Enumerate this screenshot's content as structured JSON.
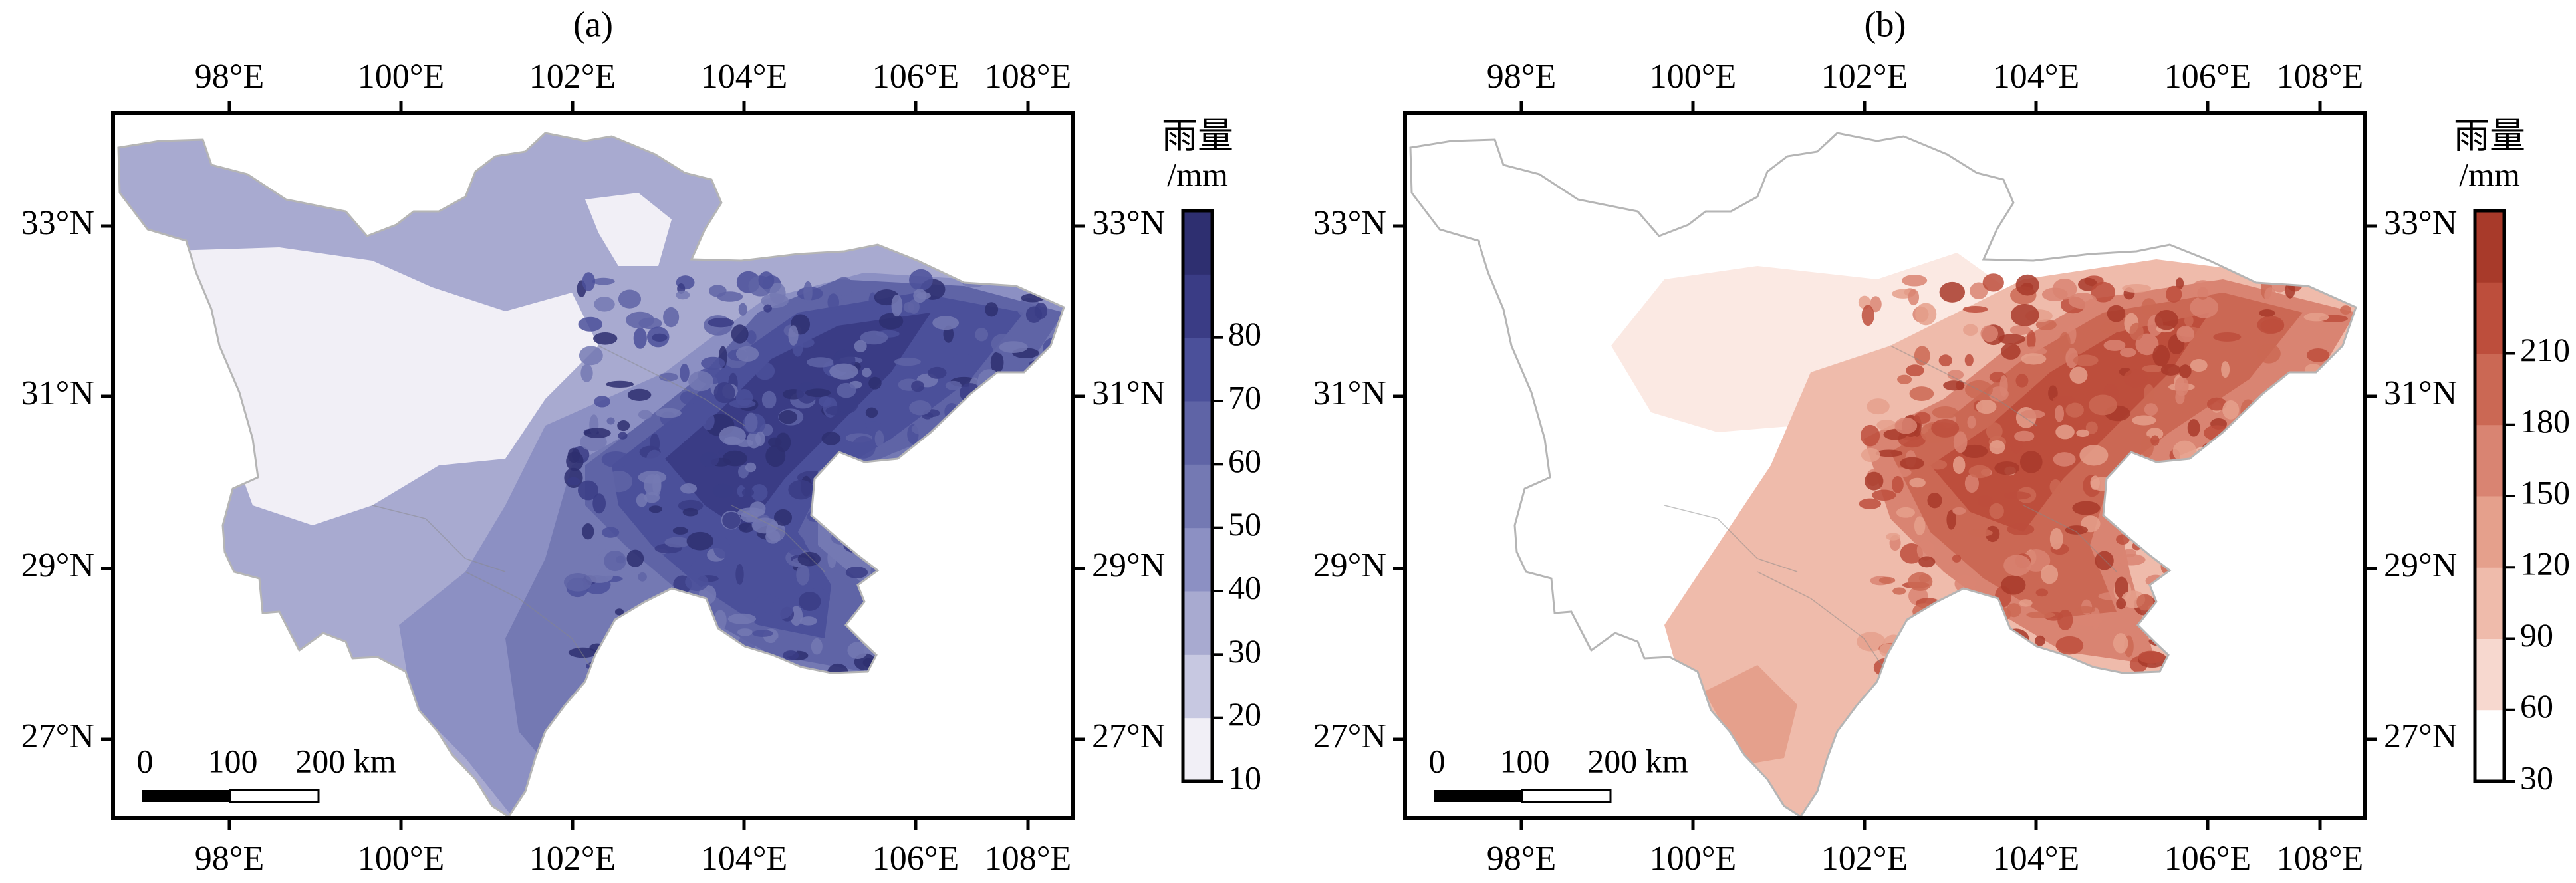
{
  "panels": [
    {
      "label": "(a)",
      "lon_ticks": [
        "98°E",
        "100°E",
        "102°E",
        "104°E",
        "106°E",
        "108°E"
      ],
      "lat_ticks": [
        "33°N",
        "31°N",
        "29°N",
        "27°N"
      ],
      "scalebar": {
        "labels": [
          "0",
          "100",
          "200 km"
        ]
      },
      "colorbar": {
        "title": "雨量",
        "unit": "/mm",
        "ticks": [
          "10",
          "20",
          "30",
          "40",
          "50",
          "60",
          "70",
          "80"
        ],
        "colors": [
          "#f1eff6",
          "#c7c8e1",
          "#a8aad0",
          "#8c90c3",
          "#7479b3",
          "#5f64a6",
          "#4b509a",
          "#3a3c85",
          "#2e2f70"
        ]
      }
    },
    {
      "label": "(b)",
      "lon_ticks": [
        "98°E",
        "100°E",
        "102°E",
        "104°E",
        "106°E",
        "108°E"
      ],
      "lat_ticks": [
        "33°N",
        "31°N",
        "29°N",
        "27°N"
      ],
      "scalebar": {
        "labels": [
          "0",
          "100",
          "200 km"
        ]
      },
      "colorbar": {
        "title": "雨量",
        "unit": "/mm",
        "ticks": [
          "30",
          "60",
          "90",
          "120",
          "150",
          "180",
          "210"
        ],
        "colors": [
          "#ffffff",
          "#f7d8cf",
          "#efbbab",
          "#e5a08c",
          "#d98472",
          "#cb6854",
          "#bd4e3c",
          "#a83a2a"
        ]
      }
    }
  ]
}
